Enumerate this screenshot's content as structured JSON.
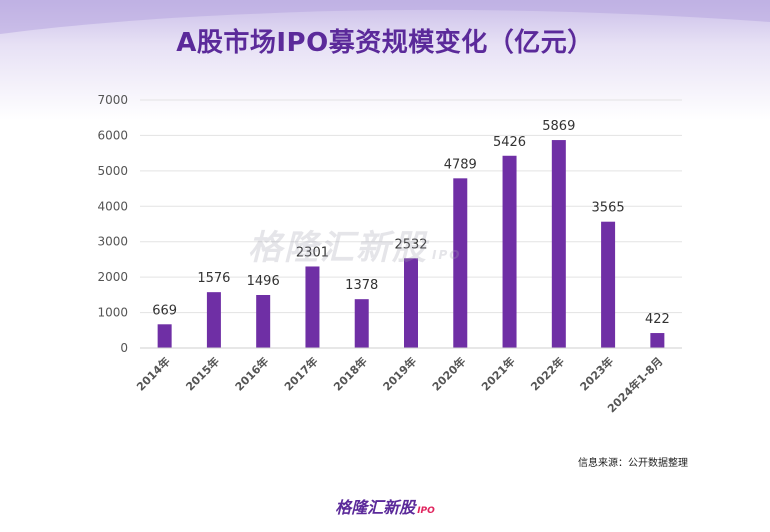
{
  "header": {
    "title": "A股市场IPO募资规模变化（亿元）"
  },
  "watermark": {
    "text": "格隆汇新股",
    "suffix": "IPO"
  },
  "footer": {
    "source": "信息来源：公开数据整理",
    "brand": "格隆汇新股",
    "brand_suffix": "IPO"
  },
  "colors": {
    "bar": "#6f2fa5",
    "title": "#5b2a9a",
    "grid": "#e3e3e3",
    "axis_text": "#555555"
  },
  "chart_data": {
    "type": "bar",
    "categories": [
      "2014年",
      "2015年",
      "2016年",
      "2017年",
      "2018年",
      "2019年",
      "2020年",
      "2021年",
      "2022年",
      "2023年",
      "2024年1-8月"
    ],
    "values": [
      669,
      1576,
      1496,
      2301,
      1378,
      2532,
      4789,
      5426,
      5869,
      3565,
      422
    ],
    "title": "A股市场IPO募资规模变化（亿元）",
    "xlabel": "",
    "ylabel": "",
    "ylim": [
      0,
      7000
    ],
    "yticks": [
      0,
      1000,
      2000,
      3000,
      4000,
      5000,
      6000,
      7000
    ],
    "grid": true,
    "data_labels": true,
    "legend": "none"
  }
}
